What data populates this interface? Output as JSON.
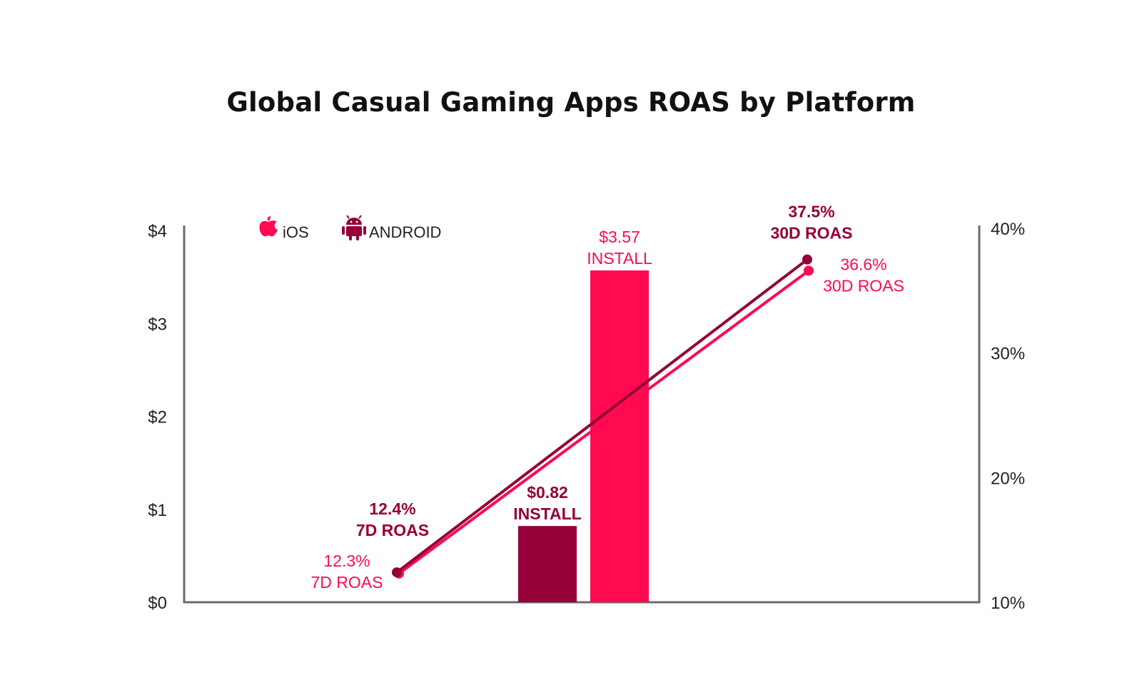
{
  "chart_data": {
    "type": "bar",
    "title": "Global Casual Gaming Apps ROAS by Platform",
    "legend": [
      {
        "name": "iOS",
        "icon": "apple-icon",
        "color": "#ff0a50"
      },
      {
        "name": "ANDROID",
        "icon": "android-icon",
        "color": "#940038"
      }
    ],
    "legend_placement": "top-left",
    "grid": false,
    "left_axis": {
      "ylim": [
        0,
        4
      ],
      "ticks": [
        0,
        1,
        2,
        3,
        4
      ],
      "tick_labels": [
        "$0",
        "$1",
        "$2",
        "$3",
        "$4"
      ]
    },
    "right_axis": {
      "ylim": [
        10,
        40
      ],
      "ticks": [
        10,
        20,
        30,
        40
      ],
      "tick_labels": [
        "10%",
        "20%",
        "30%",
        "40%"
      ]
    },
    "bars": [
      {
        "series": "ANDROID",
        "value": 0.82,
        "label_value": "$0.82",
        "label_text": "INSTALL"
      },
      {
        "series": "iOS",
        "value": 3.57,
        "label_value": "$3.57",
        "label_text": "INSTALL"
      }
    ],
    "lines": [
      {
        "series": "ANDROID",
        "axis": "right",
        "points": [
          {
            "value": 12.4,
            "label_value": "12.4%",
            "label_text": "7D ROAS"
          },
          {
            "value": 37.5,
            "label_value": "37.5%",
            "label_text": "30D ROAS"
          }
        ]
      },
      {
        "series": "iOS",
        "axis": "right",
        "points": [
          {
            "value": 12.3,
            "label_value": "12.3%",
            "label_text": "7D ROAS"
          },
          {
            "value": 36.6,
            "label_value": "36.6%",
            "label_text": "30D ROAS"
          }
        ]
      }
    ]
  }
}
